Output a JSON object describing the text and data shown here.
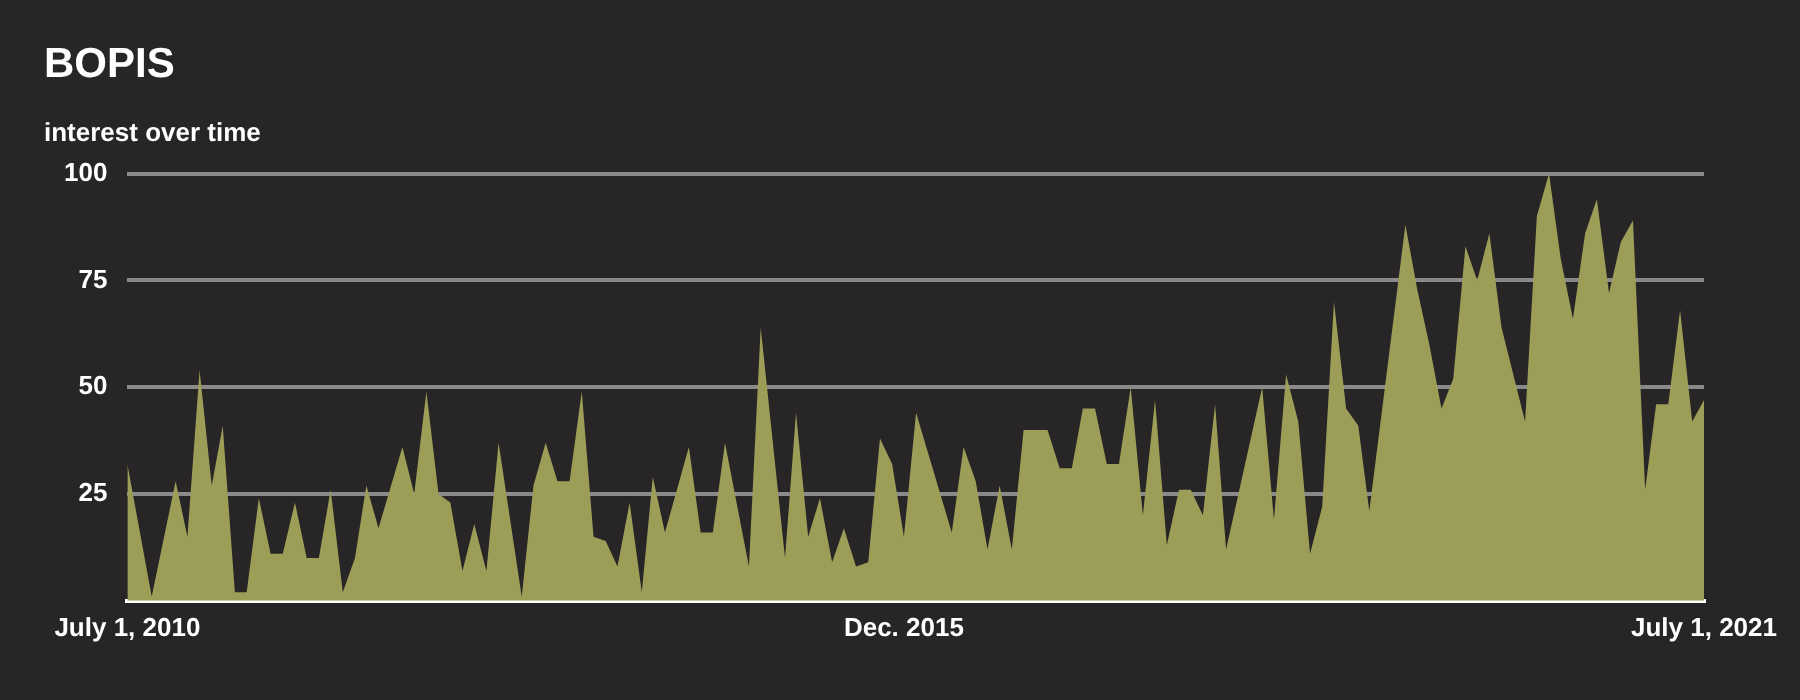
{
  "chart_data": {
    "type": "area",
    "title": "BOPIS",
    "subtitle": "interest over time",
    "x": [
      "2010-07",
      "2010-09",
      "2010-11",
      "2010-12",
      "2011-01",
      "2011-02",
      "2011-03",
      "2011-04",
      "2011-05",
      "2011-06",
      "2011-07",
      "2011-08",
      "2011-09",
      "2011-10",
      "2011-11",
      "2011-12",
      "2012-01",
      "2012-02",
      "2012-03",
      "2012-04",
      "2012-06",
      "2012-07",
      "2012-08",
      "2012-09",
      "2012-10",
      "2012-11",
      "2012-12",
      "2013-01",
      "2013-02",
      "2013-04",
      "2013-05",
      "2013-06",
      "2013-07",
      "2013-08",
      "2013-09",
      "2013-10",
      "2013-11",
      "2013-12",
      "2014-01",
      "2014-02",
      "2014-03",
      "2014-04",
      "2014-06",
      "2014-07",
      "2014-08",
      "2014-09",
      "2014-11",
      "2014-12",
      "2015-02",
      "2015-03",
      "2015-04",
      "2015-05",
      "2015-06",
      "2015-07",
      "2015-08",
      "2015-09",
      "2015-10",
      "2015-11",
      "2015-12",
      "2016-01",
      "2016-04",
      "2016-05",
      "2016-06",
      "2016-07",
      "2016-08",
      "2016-09",
      "2016-10",
      "2016-12",
      "2017-01",
      "2017-02",
      "2017-03",
      "2017-04",
      "2017-05",
      "2017-06",
      "2017-07",
      "2017-08",
      "2017-09",
      "2017-10",
      "2017-11",
      "2017-12",
      "2018-01",
      "2018-02",
      "2018-03",
      "2018-06",
      "2018-07",
      "2018-08",
      "2018-09",
      "2018-10",
      "2018-11",
      "2018-12",
      "2019-01",
      "2019-02",
      "2019-03",
      "2019-06",
      "2019-07",
      "2019-08",
      "2019-09",
      "2019-10",
      "2019-11",
      "2019-12",
      "2020-01",
      "2020-02",
      "2020-04",
      "2020-05",
      "2020-06",
      "2020-07",
      "2020-08",
      "2020-09",
      "2020-10",
      "2020-11",
      "2020-12",
      "2021-01",
      "2021-02",
      "2021-03",
      "2021-04",
      "2021-05",
      "2021-06",
      "2021-07"
    ],
    "series": [
      {
        "color": "#9c9e58",
        "values": [
          32,
          1,
          28,
          15,
          54,
          27,
          41,
          2,
          2,
          24,
          11,
          11,
          23,
          10,
          10,
          26,
          2,
          10,
          27,
          17,
          36,
          25,
          49,
          25,
          23,
          7,
          18,
          7,
          37,
          1,
          27,
          37,
          28,
          28,
          49,
          15,
          14,
          8,
          23,
          2,
          29,
          16,
          36,
          16,
          16,
          37,
          8,
          64,
          10,
          44,
          15,
          24,
          9,
          17,
          8,
          9,
          38,
          32,
          15,
          44,
          16,
          36,
          28,
          12,
          27,
          12,
          40,
          40,
          31,
          31,
          45,
          45,
          32,
          32,
          50,
          20,
          47,
          13,
          26,
          26,
          20,
          46,
          12,
          50,
          19,
          53,
          42,
          11,
          22,
          70,
          45,
          41,
          21,
          88,
          73,
          60,
          45,
          52,
          83,
          75,
          86,
          64,
          42,
          90,
          100,
          80,
          66,
          86,
          94,
          72,
          84,
          89,
          26,
          46,
          46,
          68,
          42,
          47
        ]
      }
    ],
    "xlim": [
      "2010-07-01",
      "2021-07-01"
    ],
    "xticks": [
      {
        "value": "2010-07-01",
        "label": "July 1, 2010"
      },
      {
        "value": "2015-12-01",
        "label": "Dec. 2015"
      },
      {
        "value": "2021-07-01",
        "label": "July 1, 2021"
      }
    ],
    "ylim": [
      0,
      100
    ],
    "yticks": [
      25,
      50,
      75,
      100
    ],
    "grid": "y",
    "legend": false
  }
}
